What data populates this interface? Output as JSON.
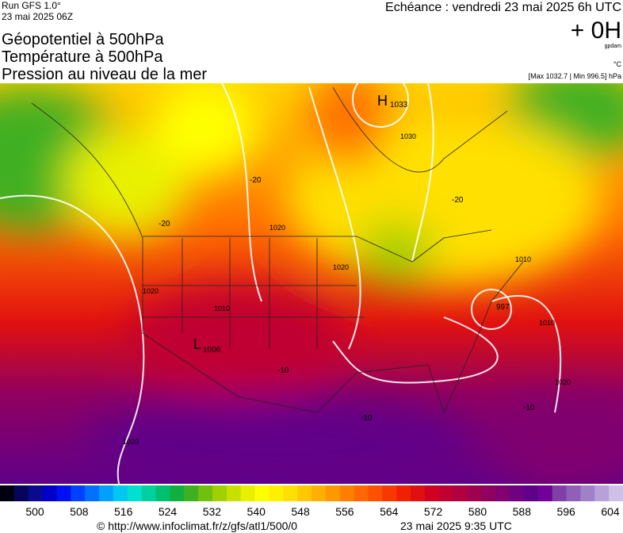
{
  "header": {
    "run": "Run GFS 1.0°",
    "run_date": "23 mai 2025 06Z",
    "title_lines": [
      "Géopotentiel à 500hPa",
      "Température à 500hPa",
      "Pression au niveau de la mer"
    ],
    "echeance": "Echéance : vendredi 23 mai 2025 6h UTC",
    "lead": "+ 0H",
    "unit_geo": "gpdam",
    "unit_temp": "°C",
    "extremes": "[Max 1032.7 | Min 996.5] hPa"
  },
  "map": {
    "labels": [
      "H",
      "1033",
      "1030",
      "1020",
      "1020",
      "1020",
      "1010",
      "1010",
      "1020",
      "1010",
      "997",
      "L",
      "1006",
      "-20",
      "-20",
      "-20",
      "-10",
      "-10",
      "-10",
      "1020"
    ]
  },
  "colorbar": {
    "labels": [
      "500",
      "508",
      "516",
      "524",
      "532",
      "540",
      "548",
      "556",
      "564",
      "572",
      "580",
      "588",
      "596",
      "604"
    ],
    "colors": [
      "#000010",
      "#05055a",
      "#0a0a90",
      "#0000c8",
      "#0010f0",
      "#0040ff",
      "#0070ff",
      "#00a0ff",
      "#00c8f0",
      "#00e0d0",
      "#00d0a0",
      "#00c070",
      "#10b040",
      "#40b020",
      "#70c010",
      "#a0d000",
      "#c8e000",
      "#e8f000",
      "#ffff00",
      "#fff000",
      "#ffe000",
      "#ffc800",
      "#ffb000",
      "#ff9800",
      "#ff8000",
      "#ff6800",
      "#ff5000",
      "#f83800",
      "#f02000",
      "#e01010",
      "#d00020",
      "#c00030",
      "#b00040",
      "#a00050",
      "#900060",
      "#800070",
      "#700080",
      "#600088",
      "#700098",
      "#8040a8",
      "#9060b8",
      "#a080c8",
      "#b8a0d8",
      "#d0c0e8"
    ]
  },
  "footer": {
    "url": "© http://www.infoclimat.fr/z/gfs/atl1/500/0",
    "date": "23 mai 2025  9:35 UTC"
  }
}
